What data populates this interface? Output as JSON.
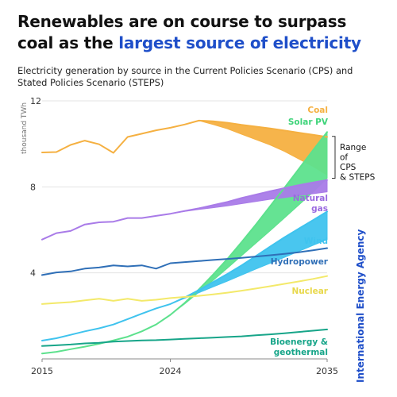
{
  "title": {
    "part1": "Renewables are on course to surpass coal as the ",
    "part2": "largest source of electricity"
  },
  "subtitle": "Electricity generation by source in the Current Policies Scenario (CPS) and Stated Policies Scenario (STEPS)",
  "publisher": "International Energy Agency",
  "colors": {
    "title_accent": "#1f4fc9",
    "coal": "#f5b041",
    "solar": "#5de18d",
    "gas": "#a97be8",
    "wind": "#3fc3ee",
    "hydro": "#2f6fb7",
    "nuclear": "#f3e96a",
    "bio": "#17a589"
  },
  "chart_data": {
    "type": "line",
    "ylabel": "thousand TWh",
    "xlim": [
      2015,
      2035
    ],
    "ylim": [
      0,
      12
    ],
    "x_ticks": [
      "2015",
      "2024",
      "2035"
    ],
    "y_ticks": [
      "4",
      "8",
      "12"
    ],
    "range_annotation": "Range\nof\nCPS\n& STEPS",
    "series": [
      {
        "name": "Coal",
        "label": "Coal",
        "color": "#f5b041",
        "x": [
          2015,
          2016,
          2017,
          2018,
          2019,
          2020,
          2021,
          2022,
          2023,
          2024,
          2025,
          2026,
          2027,
          2028,
          2029,
          2030,
          2031,
          2032,
          2033,
          2034,
          2035
        ],
        "y": [
          9.6,
          9.62,
          9.95,
          10.15,
          9.98,
          9.58,
          10.32,
          10.47,
          10.63,
          10.75,
          10.9,
          11.08,
          11.05,
          10.98,
          10.88,
          10.8,
          10.72,
          10.62,
          10.52,
          10.42,
          10.32
        ],
        "y_low": [
          9.6,
          9.62,
          9.95,
          10.15,
          9.98,
          9.58,
          10.32,
          10.47,
          10.63,
          10.75,
          10.9,
          11.08,
          10.9,
          10.7,
          10.45,
          10.2,
          9.95,
          9.65,
          9.3,
          8.95,
          8.55
        ]
      },
      {
        "name": "Solar PV",
        "label": "Solar PV",
        "color": "#5de18d",
        "x": [
          2015,
          2016,
          2017,
          2018,
          2019,
          2020,
          2021,
          2022,
          2023,
          2024,
          2025,
          2026,
          2027,
          2028,
          2029,
          2030,
          2031,
          2032,
          2033,
          2034,
          2035
        ],
        "y": [
          0.25,
          0.33,
          0.45,
          0.57,
          0.7,
          0.86,
          1.03,
          1.28,
          1.6,
          2.05,
          2.6,
          3.23,
          3.92,
          4.65,
          5.43,
          6.25,
          7.1,
          7.95,
          8.82,
          9.7,
          10.55
        ],
        "y_low": [
          0.25,
          0.33,
          0.45,
          0.57,
          0.7,
          0.86,
          1.03,
          1.28,
          1.6,
          2.05,
          2.55,
          3.1,
          3.65,
          4.22,
          4.8,
          5.38,
          5.96,
          6.55,
          7.15,
          7.75,
          8.4
        ]
      },
      {
        "name": "Natural gas",
        "label": "Natural\ngas",
        "color": "#a97be8",
        "x": [
          2015,
          2016,
          2017,
          2018,
          2019,
          2020,
          2021,
          2022,
          2023,
          2024,
          2025,
          2026,
          2027,
          2028,
          2029,
          2030,
          2031,
          2032,
          2033,
          2034,
          2035
        ],
        "y": [
          5.55,
          5.85,
          5.95,
          6.25,
          6.35,
          6.38,
          6.55,
          6.55,
          6.65,
          6.75,
          6.88,
          7.0,
          7.15,
          7.3,
          7.48,
          7.64,
          7.8,
          7.94,
          8.08,
          8.2,
          8.32
        ],
        "y_low": [
          5.55,
          5.85,
          5.95,
          6.25,
          6.35,
          6.38,
          6.55,
          6.55,
          6.65,
          6.75,
          6.86,
          6.95,
          7.03,
          7.12,
          7.22,
          7.32,
          7.42,
          7.5,
          7.6,
          7.68,
          7.77
        ]
      },
      {
        "name": "Wind",
        "label": "Wind",
        "color": "#3fc3ee",
        "x": [
          2015,
          2016,
          2017,
          2018,
          2019,
          2020,
          2021,
          2022,
          2023,
          2024,
          2025,
          2026,
          2027,
          2028,
          2029,
          2030,
          2031,
          2032,
          2033,
          2034,
          2035
        ],
        "y": [
          0.85,
          0.96,
          1.12,
          1.28,
          1.42,
          1.6,
          1.85,
          2.1,
          2.35,
          2.55,
          2.85,
          3.2,
          3.57,
          3.95,
          4.35,
          4.78,
          5.22,
          5.65,
          6.05,
          6.45,
          6.85
        ],
        "y_low": [
          0.85,
          0.96,
          1.12,
          1.28,
          1.42,
          1.6,
          1.85,
          2.1,
          2.35,
          2.55,
          2.82,
          3.08,
          3.35,
          3.62,
          3.9,
          4.18,
          4.45,
          4.72,
          5.0,
          5.28,
          5.55
        ]
      },
      {
        "name": "Hydropower",
        "label": "Hydropower",
        "color": "#2f6fb7",
        "x": [
          2015,
          2016,
          2017,
          2018,
          2019,
          2020,
          2021,
          2022,
          2023,
          2024,
          2025,
          2026,
          2027,
          2028,
          2029,
          2030,
          2031,
          2032,
          2033,
          2034,
          2035
        ],
        "y": [
          3.9,
          4.02,
          4.07,
          4.2,
          4.25,
          4.35,
          4.3,
          4.35,
          4.2,
          4.45,
          4.5,
          4.55,
          4.6,
          4.65,
          4.7,
          4.76,
          4.82,
          4.88,
          4.96,
          5.05,
          5.15
        ]
      },
      {
        "name": "Nuclear",
        "label": "Nuclear",
        "color": "#f3e96a",
        "x": [
          2015,
          2016,
          2017,
          2018,
          2019,
          2020,
          2021,
          2022,
          2023,
          2024,
          2025,
          2026,
          2027,
          2028,
          2029,
          2030,
          2031,
          2032,
          2033,
          2034,
          2035
        ],
        "y": [
          2.55,
          2.6,
          2.64,
          2.72,
          2.8,
          2.7,
          2.8,
          2.7,
          2.75,
          2.83,
          2.88,
          2.93,
          3.0,
          3.08,
          3.17,
          3.27,
          3.38,
          3.49,
          3.6,
          3.72,
          3.85
        ]
      },
      {
        "name": "Bioenergy & geothermal",
        "label": "Bioenergy &\ngeothermal",
        "color": "#17a589",
        "x": [
          2015,
          2016,
          2017,
          2018,
          2019,
          2020,
          2021,
          2022,
          2023,
          2024,
          2025,
          2026,
          2027,
          2028,
          2029,
          2030,
          2031,
          2032,
          2033,
          2034,
          2035
        ],
        "y": [
          0.6,
          0.63,
          0.67,
          0.72,
          0.75,
          0.8,
          0.83,
          0.86,
          0.87,
          0.9,
          0.93,
          0.96,
          0.99,
          1.02,
          1.05,
          1.1,
          1.14,
          1.19,
          1.25,
          1.31,
          1.37
        ]
      }
    ]
  }
}
